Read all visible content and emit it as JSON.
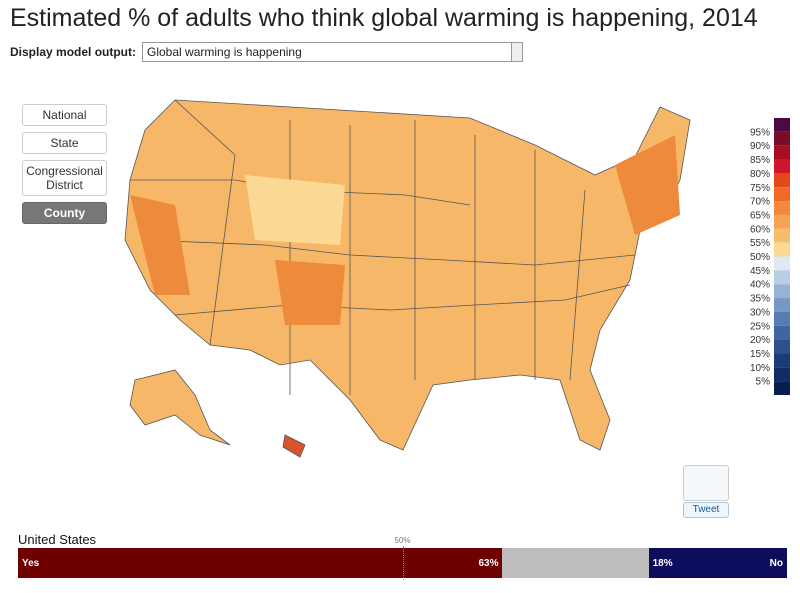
{
  "header": {
    "title": "Estimated % of adults who think global warming is happening, 2014"
  },
  "controls": {
    "label": "Display model output:",
    "selected": "Global warming is happening"
  },
  "geo_buttons": [
    {
      "label": "National"
    },
    {
      "label": "State"
    },
    {
      "label": "Congressional District"
    },
    {
      "label": "County",
      "active": true
    }
  ],
  "legend": {
    "labels": [
      "95%",
      "90%",
      "85%",
      "80%",
      "75%",
      "70%",
      "65%",
      "60%",
      "55%",
      "50%",
      "45%",
      "40%",
      "35%",
      "30%",
      "25%",
      "20%",
      "15%",
      "10%",
      "5%"
    ],
    "colors": [
      "#4a0a44",
      "#7c0a2a",
      "#a80d22",
      "#d1162a",
      "#e4471c",
      "#ee6a26",
      "#f28a3a",
      "#f5a352",
      "#f8bd6c",
      "#fbd893",
      "#dfe9f2",
      "#b9cde3",
      "#96b2d4",
      "#7598c4",
      "#567db3",
      "#3f66a0",
      "#2c508c",
      "#1d3c77",
      "#122b62",
      "#0b1d4e"
    ]
  },
  "tweet": {
    "label": "Tweet"
  },
  "summary": {
    "region": "United States",
    "midpoint": {
      "value": 50,
      "label": "50%"
    },
    "segments": [
      {
        "name": "Yes",
        "value": 63,
        "value_label": "63%",
        "color": "#6e0000"
      },
      {
        "name": "No",
        "value": 18,
        "value_label": "18%",
        "color": "#0e0c5c"
      }
    ]
  }
}
